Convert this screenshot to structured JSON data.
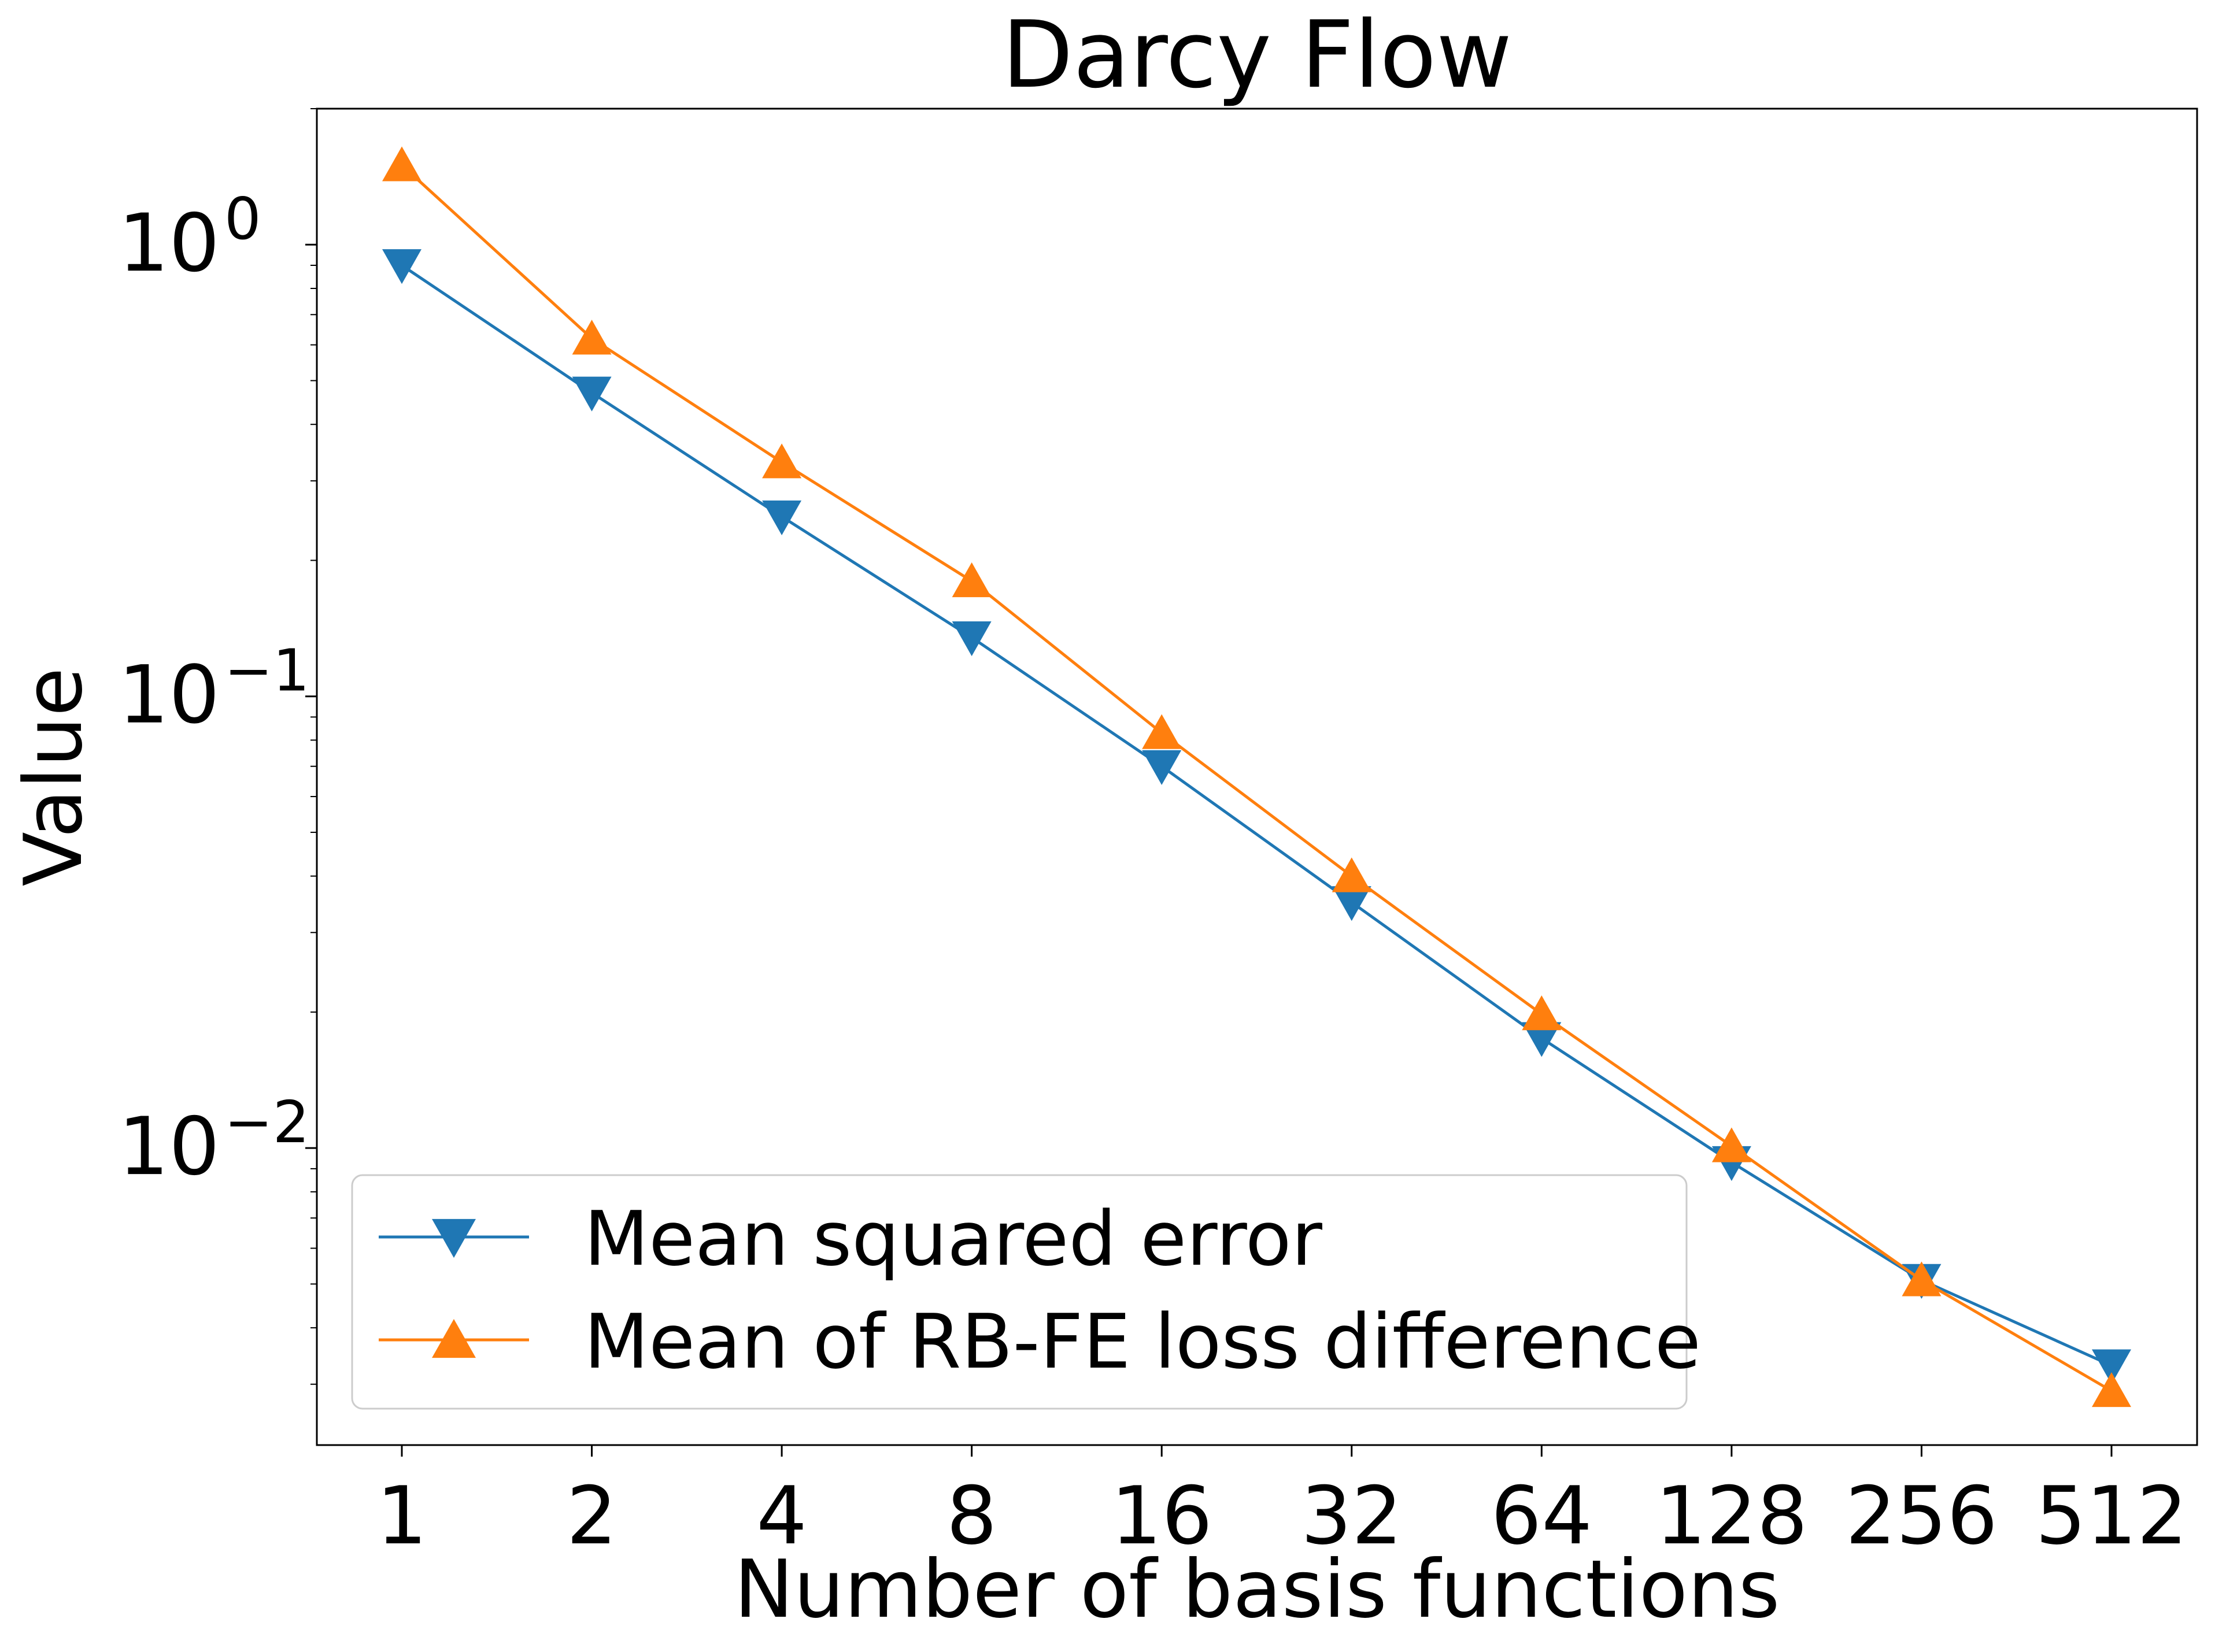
{
  "chart_data": {
    "type": "line",
    "title": "Darcy Flow",
    "xlabel": "Number of basis functions",
    "ylabel": "Value",
    "yscale": "log",
    "ylim": [
      0.0022,
      2.0
    ],
    "grid": false,
    "legend_position": "lower-left",
    "categories": [
      "1",
      "2",
      "4",
      "8",
      "16",
      "32",
      "64",
      "128",
      "256",
      "512"
    ],
    "y_ticks": [
      {
        "value": 1,
        "base": "10",
        "exp": "0"
      },
      {
        "value": 0.1,
        "base": "10",
        "exp": "−1"
      },
      {
        "value": 0.01,
        "base": "10",
        "exp": "−2"
      }
    ],
    "series": [
      {
        "name": "Mean squared error",
        "color": "#1f77b4",
        "marker": "triangle-down",
        "values": [
          0.9,
          0.47,
          0.25,
          0.135,
          0.07,
          0.035,
          0.0175,
          0.0093,
          0.0051,
          0.0033
        ]
      },
      {
        "name": "Mean of RB-FE loss difference",
        "color": "#ff7f0e",
        "marker": "triangle-up",
        "values": [
          1.5,
          0.62,
          0.33,
          0.18,
          0.083,
          0.04,
          0.0198,
          0.0101,
          0.0051,
          0.0029
        ]
      }
    ]
  }
}
